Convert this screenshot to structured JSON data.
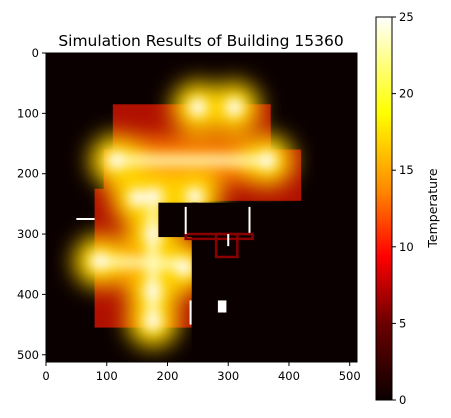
{
  "chart_data": {
    "type": "heatmap",
    "title": "Simulation Results of Building 15360",
    "xlim": [
      0,
      512
    ],
    "ylim": [
      512,
      0
    ],
    "x_ticks": [
      0,
      100,
      200,
      300,
      400,
      500
    ],
    "y_ticks": [
      0,
      100,
      200,
      300,
      400,
      500
    ],
    "colormap": "hot",
    "colorbar": {
      "label": "Temperature",
      "range": [
        0,
        25
      ],
      "ticks": [
        0,
        5,
        10,
        15,
        20,
        25
      ]
    },
    "background_value": 0,
    "heated_regions": [
      {
        "x": [
          110,
          370
        ],
        "y": [
          85,
          180
        ]
      },
      {
        "x": [
          95,
          420
        ],
        "y": [
          160,
          245
        ]
      },
      {
        "x": [
          80,
          240
        ],
        "y": [
          225,
          455
        ]
      }
    ],
    "cold_regions": [
      {
        "x": [
          185,
          250
        ],
        "y": [
          248,
          305
        ]
      },
      {
        "x": [
          240,
          420
        ],
        "y": [
          248,
          512
        ]
      }
    ],
    "hot_sources": [
      {
        "x": 115,
        "y": 178,
        "value": 25
      },
      {
        "x": 250,
        "y": 90,
        "value": 25
      },
      {
        "x": 310,
        "y": 90,
        "value": 25
      },
      {
        "x": 365,
        "y": 178,
        "value": 25
      },
      {
        "x": 150,
        "y": 240,
        "value": 25
      },
      {
        "x": 178,
        "y": 238,
        "value": 25
      },
      {
        "x": 245,
        "y": 238,
        "value": 25
      },
      {
        "x": 88,
        "y": 345,
        "value": 25
      },
      {
        "x": 176,
        "y": 300,
        "value": 25
      },
      {
        "x": 176,
        "y": 395,
        "value": 25
      },
      {
        "x": 176,
        "y": 445,
        "value": 25
      },
      {
        "x": 228,
        "y": 355,
        "value": 25
      }
    ],
    "hot_lines": [
      {
        "x1": 115,
        "y1": 178,
        "x2": 365,
        "y2": 178
      },
      {
        "x1": 88,
        "y1": 345,
        "x2": 230,
        "y2": 350
      },
      {
        "x1": 176,
        "y1": 262,
        "x2": 176,
        "y2": 445
      }
    ],
    "walls": [
      {
        "x1": 50,
        "y1": 275,
        "x2": 80,
        "y2": 275
      },
      {
        "x1": 230,
        "y1": 255,
        "x2": 230,
        "y2": 300
      },
      {
        "x1": 238,
        "y1": 410,
        "x2": 238,
        "y2": 450
      },
      {
        "x1": 335,
        "y1": 255,
        "x2": 335,
        "y2": 298
      },
      {
        "x1": 300,
        "y1": 300,
        "x2": 300,
        "y2": 320
      }
    ],
    "white_blocks": [
      {
        "x": [
          283,
          297
        ],
        "y": [
          410,
          430
        ]
      }
    ],
    "dark_red_outlines": [
      {
        "x": [
          280,
          315
        ],
        "y": [
          300,
          338
        ]
      },
      {
        "x": [
          230,
          340
        ],
        "y": [
          300,
          308
        ]
      }
    ]
  }
}
